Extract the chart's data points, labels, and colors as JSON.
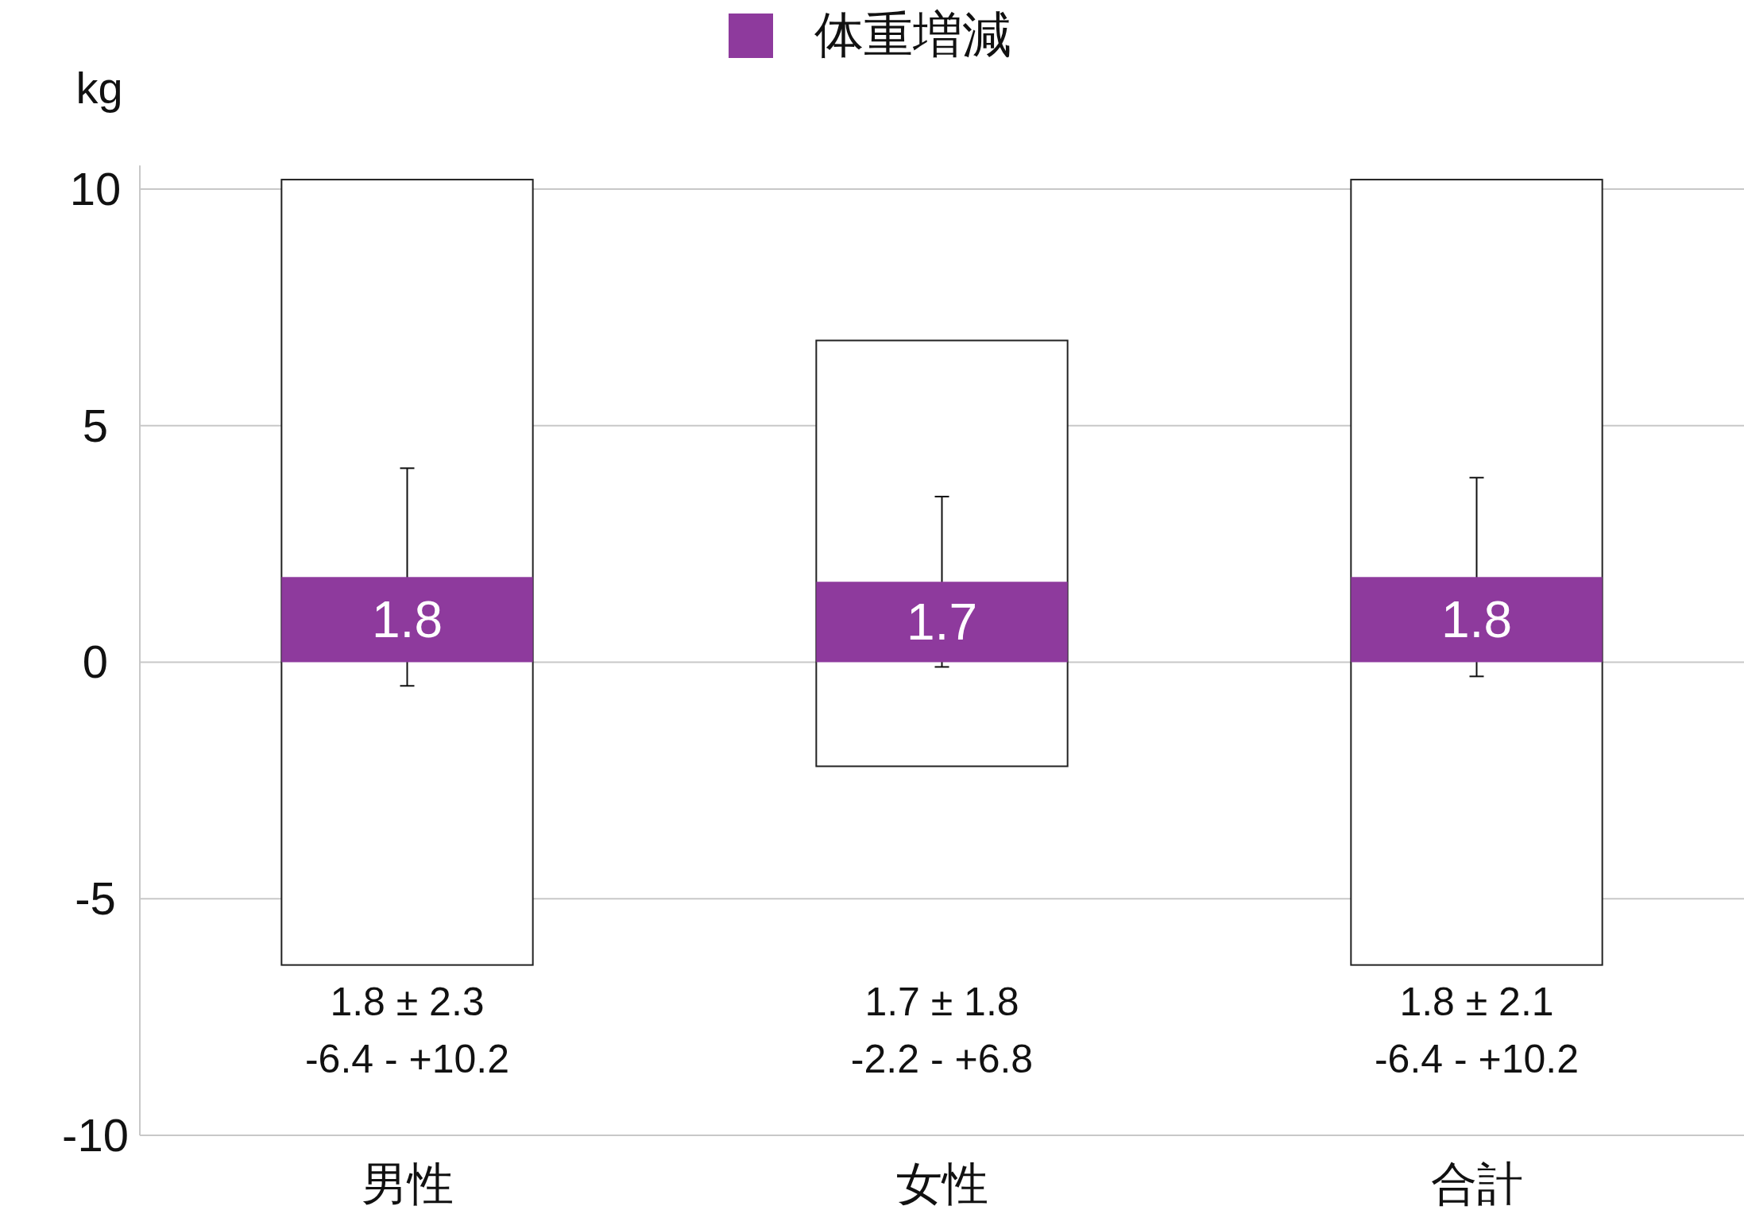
{
  "chart_data": {
    "type": "bar",
    "categories": [
      "男性",
      "女性",
      "合計"
    ],
    "series": [
      {
        "color": "#ffffff",
        "values": [
          16.6,
          9.0,
          16.6
        ],
        "base": [
          -6.4,
          -2.2,
          -6.4
        ]
      },
      {
        "name": "体重増減",
        "color": "#8e3a9d",
        "values": [
          1.8,
          1.7,
          1.8
        ],
        "errors": [
          2.3,
          1.8,
          2.1
        ],
        "value_labels": [
          "1.8",
          "1.7",
          "1.8"
        ]
      }
    ],
    "ylabel": "kg",
    "ylim": [
      -10,
      10.5
    ],
    "yticks": [
      -10,
      -5,
      0,
      5,
      10
    ],
    "grid": "y",
    "legend": "top",
    "annotations": [
      "1.8 ± 2.3\n-6.4 - +10.2",
      "1.7 ± 1.8\n-2.2 - +6.8",
      "1.8 ± 2.1\n-6.4 - +10.2"
    ]
  }
}
